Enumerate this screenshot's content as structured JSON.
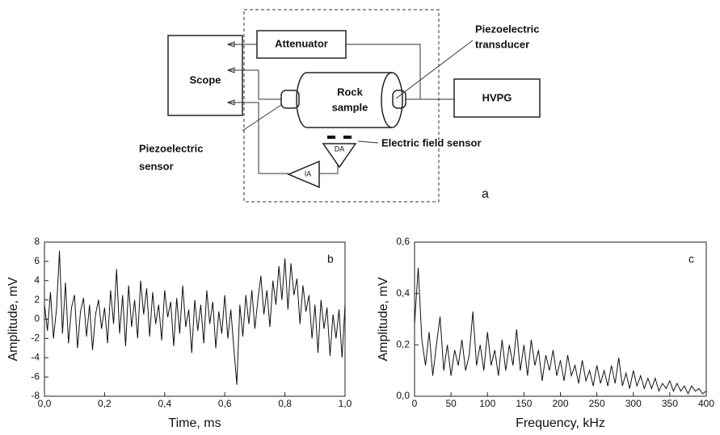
{
  "diagram": {
    "attenuator": "Attenuator",
    "scope": "Scope",
    "rock_sample": [
      "Rock",
      "sample"
    ],
    "transducer": [
      "Piezoelectric",
      "transducer"
    ],
    "hvpg": "HVPG",
    "sensor": [
      "Piezoelectric",
      "sensor"
    ],
    "field_sensor": "Electric field sensor",
    "da": "DA",
    "ia": "IA",
    "panel_label": "a"
  },
  "chart_data": [
    {
      "type": "line",
      "panel_label": "b",
      "x_label": "Time, ms",
      "y_label": "Amplitude, mV",
      "color": "#111111",
      "xlim": [
        0,
        1
      ],
      "ylim": [
        -8,
        8
      ],
      "xticks": [
        {
          "value": 0,
          "label": "0,0"
        },
        {
          "value": 0.2,
          "label": "0,2"
        },
        {
          "value": 0.4,
          "label": "0,4"
        },
        {
          "value": 0.6,
          "label": "0,6"
        },
        {
          "value": 0.8,
          "label": "0,8"
        },
        {
          "value": 1,
          "label": "1,0"
        }
      ],
      "yticks": [
        -8,
        -6,
        -4,
        -2,
        0,
        2,
        4,
        6,
        8
      ],
      "x": [
        0,
        0.01,
        0.02,
        0.03,
        0.04,
        0.05,
        0.06,
        0.07,
        0.08,
        0.09,
        0.1,
        0.11,
        0.12,
        0.13,
        0.14,
        0.15,
        0.16,
        0.17,
        0.18,
        0.19,
        0.2,
        0.21,
        0.22,
        0.23,
        0.24,
        0.25,
        0.26,
        0.27,
        0.28,
        0.29,
        0.3,
        0.31,
        0.32,
        0.33,
        0.34,
        0.35,
        0.36,
        0.37,
        0.38,
        0.39,
        0.4,
        0.41,
        0.42,
        0.43,
        0.44,
        0.45,
        0.46,
        0.47,
        0.48,
        0.49,
        0.5,
        0.51,
        0.52,
        0.53,
        0.54,
        0.55,
        0.56,
        0.57,
        0.58,
        0.59,
        0.6,
        0.61,
        0.62,
        0.63,
        0.64,
        0.65,
        0.66,
        0.67,
        0.68,
        0.69,
        0.7,
        0.71,
        0.72,
        0.73,
        0.74,
        0.75,
        0.76,
        0.77,
        0.78,
        0.79,
        0.8,
        0.81,
        0.82,
        0.83,
        0.84,
        0.85,
        0.86,
        0.87,
        0.88,
        0.89,
        0.9,
        0.91,
        0.92,
        0.93,
        0.94,
        0.95,
        0.96,
        0.97,
        0.98,
        0.99,
        1
      ],
      "values": [
        1.5,
        -1.2,
        2.8,
        -2.0,
        1.0,
        7.1,
        -1.5,
        3.8,
        -2.5,
        1.2,
        2.5,
        -3.0,
        0.8,
        2.2,
        -1.8,
        1.5,
        -3.2,
        0.5,
        2.0,
        -1.0,
        1.2,
        -2.5,
        3.0,
        -0.5,
        5.2,
        -1.5,
        2.5,
        -2.8,
        3.5,
        -0.8,
        2.0,
        -2.0,
        4.0,
        0.5,
        3.2,
        -1.8,
        2.8,
        -0.5,
        1.5,
        -2.2,
        3.0,
        0.2,
        1.8,
        -2.8,
        2.2,
        -1.5,
        3.5,
        -0.8,
        1.0,
        -3.5,
        2.0,
        -1.2,
        1.5,
        -2.5,
        3.0,
        -0.5,
        1.8,
        -3.0,
        0.8,
        -1.5,
        2.5,
        -2.0,
        1.0,
        -3.0,
        -6.8,
        1.5,
        -1.8,
        2.5,
        -0.5,
        3.0,
        -1.0,
        2.0,
        4.5,
        0.5,
        3.0,
        -0.8,
        4.0,
        1.5,
        5.5,
        2.0,
        6.3,
        1.0,
        5.8,
        2.5,
        4.2,
        -0.5,
        3.5,
        0.8,
        2.5,
        -2.0,
        1.5,
        -3.5,
        2.0,
        -1.0,
        1.2,
        -3.8,
        0.5,
        -2.0,
        1.0,
        -4.0,
        1.5
      ]
    },
    {
      "type": "line",
      "panel_label": "c",
      "x_label": "Frequency, kHz",
      "y_label": "Amplitude, mV",
      "color": "#111111",
      "xlim": [
        0,
        400
      ],
      "ylim": [
        0,
        0.6
      ],
      "xticks": [
        0,
        50,
        100,
        150,
        200,
        250,
        300,
        350,
        400
      ],
      "yticks": [
        {
          "value": 0,
          "label": "0,0"
        },
        {
          "value": 0.2,
          "label": "0,2"
        },
        {
          "value": 0.4,
          "label": "0,4"
        },
        {
          "value": 0.6,
          "label": "0,6"
        }
      ],
      "x": [
        0,
        5,
        10,
        15,
        20,
        25,
        30,
        35,
        40,
        45,
        50,
        55,
        60,
        65,
        70,
        75,
        80,
        85,
        90,
        95,
        100,
        105,
        110,
        115,
        120,
        125,
        130,
        135,
        140,
        145,
        150,
        155,
        160,
        165,
        170,
        175,
        180,
        185,
        190,
        195,
        200,
        205,
        210,
        215,
        220,
        225,
        230,
        235,
        240,
        245,
        250,
        255,
        260,
        265,
        270,
        275,
        280,
        285,
        290,
        295,
        300,
        305,
        310,
        315,
        320,
        325,
        330,
        335,
        340,
        345,
        350,
        355,
        360,
        365,
        370,
        375,
        380,
        385,
        390,
        395,
        400
      ],
      "values": [
        0.28,
        0.5,
        0.22,
        0.12,
        0.25,
        0.08,
        0.2,
        0.31,
        0.1,
        0.2,
        0.08,
        0.18,
        0.12,
        0.22,
        0.1,
        0.16,
        0.33,
        0.12,
        0.2,
        0.1,
        0.25,
        0.12,
        0.18,
        0.08,
        0.22,
        0.1,
        0.2,
        0.12,
        0.26,
        0.1,
        0.2,
        0.08,
        0.22,
        0.12,
        0.18,
        0.06,
        0.16,
        0.1,
        0.18,
        0.08,
        0.14,
        0.06,
        0.16,
        0.08,
        0.12,
        0.05,
        0.14,
        0.06,
        0.1,
        0.04,
        0.12,
        0.05,
        0.1,
        0.04,
        0.12,
        0.05,
        0.15,
        0.04,
        0.09,
        0.03,
        0.1,
        0.04,
        0.08,
        0.03,
        0.07,
        0.03,
        0.07,
        0.02,
        0.05,
        0.03,
        0.06,
        0.02,
        0.05,
        0.02,
        0.04,
        0.01,
        0.04,
        0.02,
        0.03,
        0.01,
        0.02
      ]
    }
  ]
}
